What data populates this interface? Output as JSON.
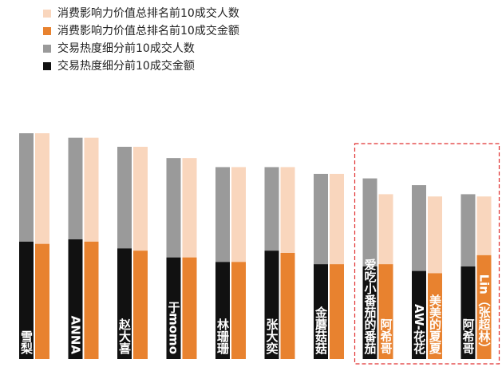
{
  "colors": {
    "heat_people": "#9a9a9a",
    "heat_amount": "#111111",
    "consume_people": "#f9d6bd",
    "consume_amount": "#e8822f",
    "highlight_box": "#e03030",
    "label_text": "#ffffff"
  },
  "legend": [
    {
      "label": "消费影响力价值总排名前10成交人数",
      "color": "#f9d6bd"
    },
    {
      "label": "消费影响力价值总排名前10成交金额",
      "color": "#e8822f"
    },
    {
      "label": "交易热度细分前10成交人数",
      "color": "#9a9a9a"
    },
    {
      "label": "交易热度细分前10成交金额",
      "color": "#111111"
    }
  ],
  "chart_data": {
    "type": "bar",
    "ylim": [
      0,
      100
    ],
    "series_names": [
      "交易热度细分前10成交人数",
      "交易热度细分前10成交金额",
      "消费影响力价值总排名前10成交人数",
      "消费影响力价值总排名前10成交金额"
    ],
    "groups": [
      {
        "left_label": "雪梨",
        "right_label": "",
        "heat_people": 100,
        "heat_amount": 52,
        "consume_people": 100,
        "consume_amount": 51,
        "highlighted": false
      },
      {
        "left_label": "ANNA",
        "right_label": "",
        "heat_people": 98,
        "heat_amount": 53,
        "consume_people": 98,
        "consume_amount": 52,
        "highlighted": false
      },
      {
        "left_label": "赵大喜",
        "right_label": "",
        "heat_people": 94,
        "heat_amount": 49,
        "consume_people": 94,
        "consume_amount": 48,
        "highlighted": false
      },
      {
        "left_label": "于momo",
        "right_label": "",
        "heat_people": 89,
        "heat_amount": 45,
        "consume_people": 89,
        "consume_amount": 45,
        "highlighted": false
      },
      {
        "left_label": "林珊珊",
        "right_label": "",
        "heat_people": 85,
        "heat_amount": 43,
        "consume_people": 85,
        "consume_amount": 43,
        "highlighted": false
      },
      {
        "left_label": "张大奕",
        "right_label": "",
        "heat_people": 85,
        "heat_amount": 48,
        "consume_people": 85,
        "consume_amount": 47,
        "highlighted": false
      },
      {
        "left_label": "金蘑菇菇",
        "right_label": "",
        "heat_people": 82,
        "heat_amount": 42,
        "consume_people": 82,
        "consume_amount": 42,
        "highlighted": false
      },
      {
        "left_label": "爱吃小番茄的番茄",
        "right_label": "阿希哥",
        "heat_people": 80,
        "heat_amount": 41,
        "consume_people": 73,
        "consume_amount": 42,
        "highlighted": true
      },
      {
        "left_label": "AW-花花",
        "right_label": "美美的夏夏",
        "heat_people": 77,
        "heat_amount": 39,
        "consume_people": 72,
        "consume_amount": 38,
        "highlighted": true
      },
      {
        "left_label": "阿希哥",
        "right_label": "Lin（张超林）",
        "heat_people": 73,
        "heat_amount": 41,
        "consume_people": 72,
        "consume_amount": 46,
        "highlighted": true
      }
    ]
  }
}
